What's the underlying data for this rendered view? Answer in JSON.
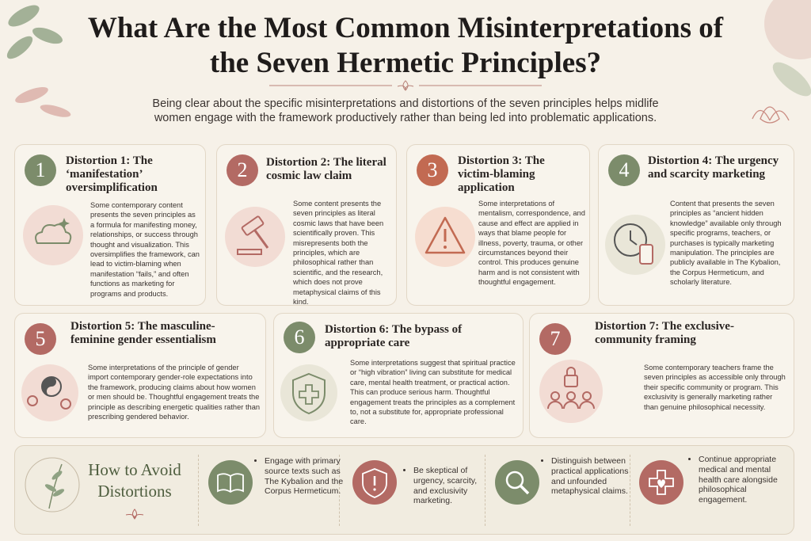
{
  "header": {
    "title": "What Are the Most Common Misinterpretations of the Seven Hermetic Principles?",
    "subtitle": "Being clear about the specific misinterpretations and distortions of the seven principles helps midlife women engage with the framework productively rather than being led into problematic applications."
  },
  "cards": [
    {
      "number": "1",
      "title": "Distortion 1: The ‘manifestation’ oversimplification",
      "body": "Some contemporary content presents the seven principles as a formula for manifesting money, relationships, or success through thought and visualization. This oversimplifies the framework, can lead to victim-blaming when manifestation “fails,” and often functions as marketing for programs and products."
    },
    {
      "number": "2",
      "title": "Distortion 2: The literal cosmic law claim",
      "body": "Some content presents the seven principles as literal cosmic laws that have been scientifically proven. This misrepresents both the principles, which are philosophical rather than scientific, and the research, which does not prove metaphysical claims of this kind."
    },
    {
      "number": "3",
      "title": "Distortion 3: The victim-blaming application",
      "body": "Some interpretations of mentalism, correspondence, and cause and effect are applied in ways that blame people for illness, poverty, trauma, or other circumstances beyond their control. This produces genuine harm and is not consistent with thoughtful engagement."
    },
    {
      "number": "4",
      "title": "Distortion 4: The urgency and scarcity marketing",
      "body": "Content that presents the seven principles as “ancient hidden knowledge” available only through specific programs, teachers, or purchases is typically marketing manipulation. The principles are publicly available in The Kybalion, the Corpus Hermeticum, and scholarly literature."
    },
    {
      "number": "5",
      "title": "Distortion 5: The masculine-feminine gender essentialism",
      "body": "Some interpretations of the principle of gender import contemporary gender-role expectations into the framework, producing claims about how women or men should be. Thoughtful engagement treats the principle as describing energetic qualities rather than prescribing gendered behavior."
    },
    {
      "number": "6",
      "title": "Distortion 6: The bypass of appropriate care",
      "body": "Some interpretations suggest that spiritual practice or “high vibration” living can substitute for medical care, mental health treatment, or practical action. This can produce serious harm. Thoughtful engagement treats the principles as a complement to, not a substitute for, appropriate professional care."
    },
    {
      "number": "7",
      "title": "Distortion 7: The exclusive-community framing",
      "body": "Some contemporary teachers frame the seven principles as accessible only through their specific community or program. This exclusivity is generally marketing rather than genuine philosophical necessity."
    }
  ],
  "avoid": {
    "title": "How to Avoid Distortions",
    "tips": [
      "Engage with primary source texts such as The Kybalion and the Corpus Hermeticum.",
      "Be skeptical of urgency, scarcity, and exclusivity marketing.",
      "Distinguish between practical applications and unfounded metaphysical claims.",
      "Continue appropriate medical and mental health care alongside philosophical engagement."
    ]
  }
}
